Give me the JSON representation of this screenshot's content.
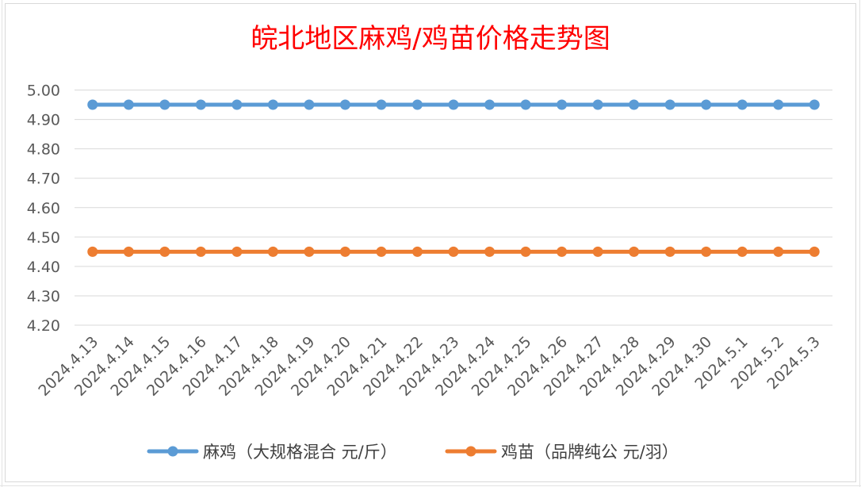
{
  "chart_data": {
    "type": "line",
    "title": "皖北地区麻鸡/鸡苗价格走势图",
    "categories": [
      "2024.4.13",
      "2024.4.14",
      "2024.4.15",
      "2024.4.16",
      "2024.4.17",
      "2024.4.18",
      "2024.4.19",
      "2024.4.20",
      "2024.4.21",
      "2024.4.22",
      "2024.4.23",
      "2024.4.24",
      "2024.4.25",
      "2024.4.26",
      "2024.4.27",
      "2024.4.28",
      "2024.4.29",
      "2024.4.30",
      "2024.5.1",
      "2024.5.2",
      "2024.5.3"
    ],
    "y_ticks": [
      "4.20",
      "4.30",
      "4.40",
      "4.50",
      "4.60",
      "4.70",
      "4.80",
      "4.90",
      "5.00"
    ],
    "ylim": [
      4.2,
      5.0
    ],
    "grid": true,
    "legend_position": "bottom",
    "series": [
      {
        "name": "麻鸡（大规格混合 元/斤）",
        "color": "#5b9bd5",
        "values": [
          4.95,
          4.95,
          4.95,
          4.95,
          4.95,
          4.95,
          4.95,
          4.95,
          4.95,
          4.95,
          4.95,
          4.95,
          4.95,
          4.95,
          4.95,
          4.95,
          4.95,
          4.95,
          4.95,
          4.95,
          4.95
        ]
      },
      {
        "name": "鸡苗（品牌纯公 元/羽）",
        "color": "#ed7d31",
        "values": [
          4.45,
          4.45,
          4.45,
          4.45,
          4.45,
          4.45,
          4.45,
          4.45,
          4.45,
          4.45,
          4.45,
          4.45,
          4.45,
          4.45,
          4.45,
          4.45,
          4.45,
          4.45,
          4.45,
          4.45,
          4.45
        ]
      }
    ],
    "title_color": "#ff0000"
  }
}
